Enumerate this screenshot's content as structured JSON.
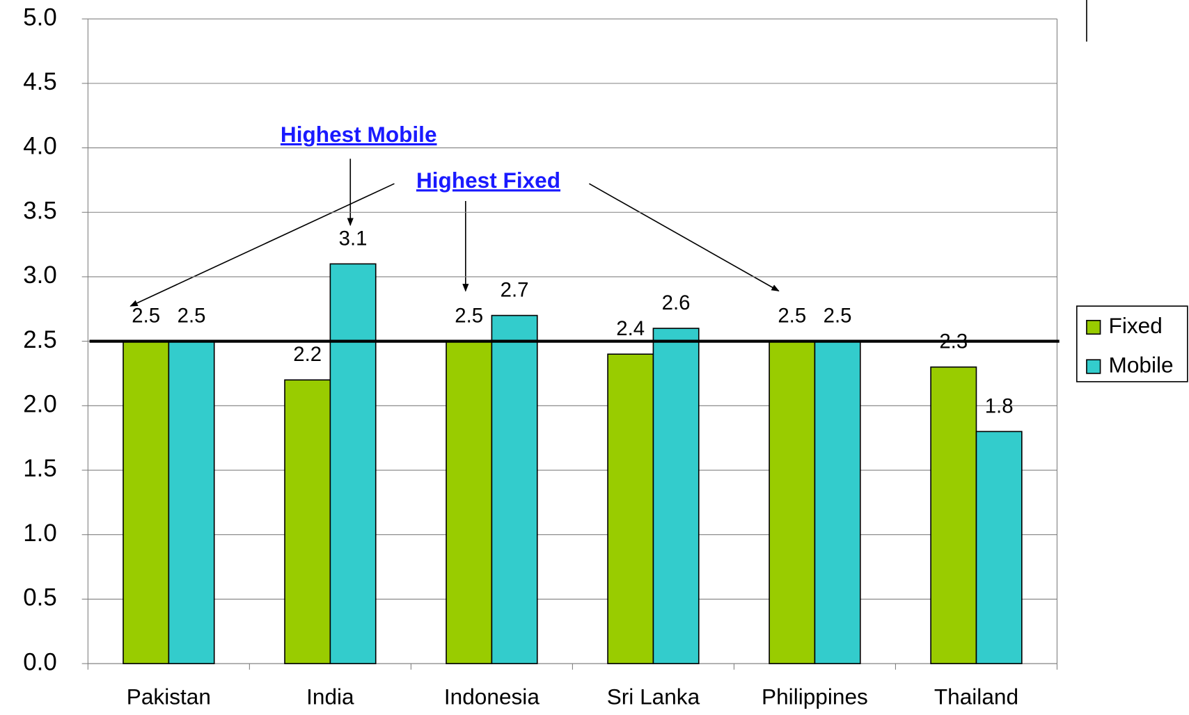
{
  "chart_data": {
    "type": "bar",
    "categories": [
      "Pakistan",
      "India",
      "Indonesia",
      "Sri Lanka",
      "Philippines",
      "Thailand"
    ],
    "series": [
      {
        "name": "Fixed",
        "color": "#99cc00",
        "values": [
          2.5,
          2.2,
          2.5,
          2.4,
          2.5,
          2.3
        ]
      },
      {
        "name": "Mobile",
        "color": "#33cccc",
        "values": [
          2.5,
          3.1,
          2.7,
          2.6,
          2.5,
          1.8
        ]
      }
    ],
    "ylim": [
      0,
      5
    ],
    "yticks": [
      {
        "value": 0,
        "label": "0.0"
      },
      0.5,
      {
        "value": 1,
        "label": "1.0"
      },
      1.5,
      {
        "value": 2,
        "label": "2.0"
      },
      2.5,
      {
        "value": 3,
        "label": "3.0"
      },
      3.5,
      {
        "value": 4,
        "label": "4.0"
      },
      4.5,
      {
        "value": 5,
        "label": "5.0"
      }
    ],
    "grid": true,
    "reference_line": 2.5,
    "annotations": [
      "Highest Mobile",
      "Highest Fixed"
    ],
    "legend": "right"
  }
}
